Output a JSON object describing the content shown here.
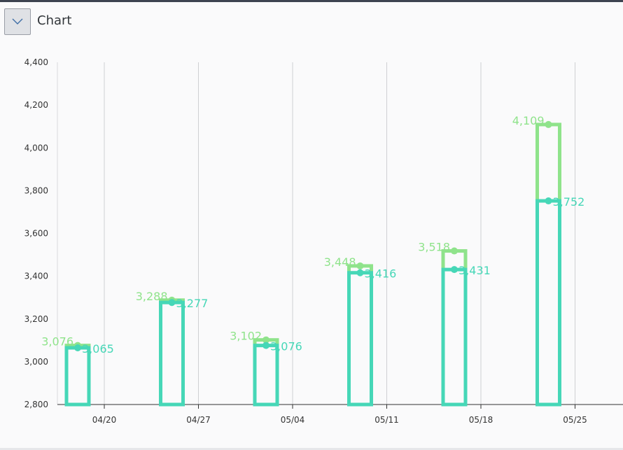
{
  "header": {
    "title": "Chart",
    "toggle_icon": "chevron-down-icon"
  },
  "chart_data": {
    "type": "bar",
    "categories": [
      "04/20",
      "04/27",
      "05/04",
      "05/11",
      "05/18",
      "05/25"
    ],
    "series": [
      {
        "color": "#8fe38b",
        "values": [
          3076,
          3288,
          3102,
          3448,
          3518,
          4109
        ],
        "labels": [
          "3,076",
          "3,288",
          "3,102",
          "3,448",
          "3,518",
          "4,109"
        ]
      },
      {
        "color": "#46d7b7",
        "values": [
          3065,
          3277,
          3076,
          3416,
          3431,
          3752
        ],
        "labels": [
          "3,065",
          "3,277",
          "3,076",
          "3,416",
          "3,431",
          "3,752"
        ]
      }
    ],
    "y_ticks": [
      "4,400",
      "4,200",
      "4,000",
      "3,800",
      "3,600",
      "3,400",
      "3,200",
      "3,000",
      "2,800"
    ],
    "y_tick_values": [
      4400,
      4200,
      4000,
      3800,
      3600,
      3400,
      3200,
      3000,
      2800
    ],
    "ylim": [
      2800,
      4400
    ],
    "grid": "vertical",
    "colors": {
      "axis": "#333333",
      "grid": "#cfd0d3",
      "tick_text": "#333333"
    }
  }
}
